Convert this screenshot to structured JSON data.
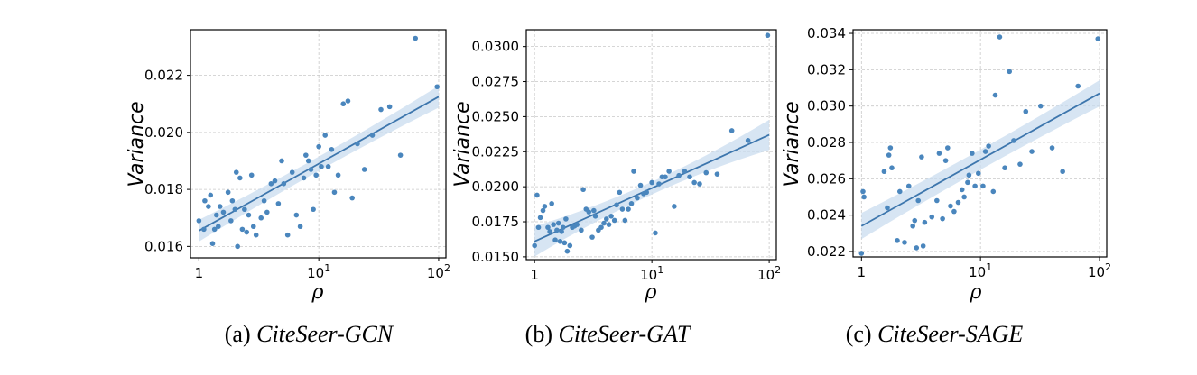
{
  "chart_data": [
    {
      "type": "scatter",
      "x_scale": "log",
      "xlabel": "ρ",
      "ylabel": "Variance",
      "caption_label": "(a)",
      "caption_name": "CiteSeer-GCN",
      "xlim": [
        0.85,
        115
      ],
      "ylim": [
        0.0156,
        0.0236
      ],
      "yticks": [
        0.016,
        0.018,
        0.02,
        0.022
      ],
      "ytick_labels": [
        "0.016",
        "0.018",
        "0.020",
        "0.022"
      ],
      "xtick_labels": [
        {
          "x": 1,
          "base": "1",
          "exp": ""
        },
        {
          "x": 10,
          "base": "10",
          "exp": "1"
        },
        {
          "x": 100,
          "base": "10",
          "exp": "2"
        }
      ],
      "fit": {
        "x0": 1,
        "y0": 0.01655,
        "x1": 100,
        "y1": 0.02125,
        "band_low": [
          0.0161,
          0.0204
        ],
        "band_mid": 0.00025
      },
      "points": [
        [
          1.0,
          0.0169
        ],
        [
          1.1,
          0.0166
        ],
        [
          1.12,
          0.0176
        ],
        [
          1.2,
          0.0174
        ],
        [
          1.25,
          0.0178
        ],
        [
          1.3,
          0.0161
        ],
        [
          1.35,
          0.0166
        ],
        [
          1.4,
          0.0171
        ],
        [
          1.45,
          0.0167
        ],
        [
          1.5,
          0.0174
        ],
        [
          1.6,
          0.0172
        ],
        [
          1.75,
          0.0179
        ],
        [
          1.85,
          0.0169
        ],
        [
          1.9,
          0.0176
        ],
        [
          2.0,
          0.0173
        ],
        [
          2.05,
          0.0186
        ],
        [
          2.1,
          0.016
        ],
        [
          2.2,
          0.0184
        ],
        [
          2.3,
          0.0166
        ],
        [
          2.4,
          0.0173
        ],
        [
          2.5,
          0.0165
        ],
        [
          2.6,
          0.0171
        ],
        [
          2.75,
          0.0185
        ],
        [
          2.85,
          0.0167
        ],
        [
          3.0,
          0.0164
        ],
        [
          3.3,
          0.017
        ],
        [
          3.5,
          0.0176
        ],
        [
          3.7,
          0.0172
        ],
        [
          4.0,
          0.0182
        ],
        [
          4.3,
          0.0183
        ],
        [
          4.6,
          0.0175
        ],
        [
          4.9,
          0.019
        ],
        [
          5.1,
          0.0182
        ],
        [
          5.5,
          0.0164
        ],
        [
          6.0,
          0.0186
        ],
        [
          6.5,
          0.0171
        ],
        [
          7.0,
          0.0167
        ],
        [
          7.5,
          0.0184
        ],
        [
          7.8,
          0.0192
        ],
        [
          8.2,
          0.019
        ],
        [
          8.6,
          0.0187
        ],
        [
          9.0,
          0.0173
        ],
        [
          9.5,
          0.0185
        ],
        [
          10.0,
          0.0195
        ],
        [
          10.5,
          0.0188
        ],
        [
          11.3,
          0.0199
        ],
        [
          12.0,
          0.0188
        ],
        [
          12.8,
          0.0194
        ],
        [
          13.5,
          0.0179
        ],
        [
          14.5,
          0.0185
        ],
        [
          16.0,
          0.021
        ],
        [
          17.5,
          0.0211
        ],
        [
          19.0,
          0.0177
        ],
        [
          21.0,
          0.0196
        ],
        [
          24.0,
          0.0187
        ],
        [
          28.0,
          0.0199
        ],
        [
          33.0,
          0.0208
        ],
        [
          39.0,
          0.0209
        ],
        [
          48.0,
          0.0192
        ],
        [
          64.0,
          0.0233
        ],
        [
          97.0,
          0.0216
        ]
      ]
    },
    {
      "type": "scatter",
      "x_scale": "log",
      "xlabel": "ρ",
      "ylabel": "Variance",
      "caption_label": "(b)",
      "caption_name": "CiteSeer-GAT",
      "xlim": [
        0.85,
        115
      ],
      "ylim": [
        0.0148,
        0.0312
      ],
      "yticks": [
        0.015,
        0.0175,
        0.02,
        0.0225,
        0.025,
        0.0275,
        0.03
      ],
      "ytick_labels": [
        "0.0150",
        "0.0175",
        "0.0200",
        "0.0225",
        "0.0250",
        "0.0275",
        "0.0300"
      ],
      "xtick_labels": [
        {
          "x": 1,
          "base": "1",
          "exp": ""
        },
        {
          "x": 10,
          "base": "10",
          "exp": "1"
        },
        {
          "x": 100,
          "base": "10",
          "exp": "2"
        }
      ],
      "fit": {
        "x0": 1,
        "y0": 0.0161,
        "x1": 100,
        "y1": 0.0237,
        "band_low": [
          0.0154,
          0.0213
        ],
        "band_mid": 0.00045
      },
      "points": [
        [
          1.0,
          0.0158
        ],
        [
          1.05,
          0.0194
        ],
        [
          1.08,
          0.0171
        ],
        [
          1.12,
          0.0178
        ],
        [
          1.18,
          0.0183
        ],
        [
          1.22,
          0.0186
        ],
        [
          1.3,
          0.0171
        ],
        [
          1.35,
          0.0168
        ],
        [
          1.4,
          0.0188
        ],
        [
          1.45,
          0.0173
        ],
        [
          1.5,
          0.0162
        ],
        [
          1.55,
          0.0169
        ],
        [
          1.6,
          0.0174
        ],
        [
          1.65,
          0.0161
        ],
        [
          1.7,
          0.0168
        ],
        [
          1.75,
          0.0171
        ],
        [
          1.8,
          0.016
        ],
        [
          1.85,
          0.0177
        ],
        [
          1.9,
          0.0154
        ],
        [
          2.0,
          0.0158
        ],
        [
          2.1,
          0.0171
        ],
        [
          2.2,
          0.0172
        ],
        [
          2.3,
          0.0173
        ],
        [
          2.5,
          0.0169
        ],
        [
          2.6,
          0.0198
        ],
        [
          2.75,
          0.0184
        ],
        [
          2.9,
          0.0182
        ],
        [
          3.1,
          0.0164
        ],
        [
          3.2,
          0.0183
        ],
        [
          3.3,
          0.0179
        ],
        [
          3.5,
          0.0169
        ],
        [
          3.7,
          0.0171
        ],
        [
          3.9,
          0.0174
        ],
        [
          4.1,
          0.0177
        ],
        [
          4.3,
          0.0173
        ],
        [
          4.5,
          0.0179
        ],
        [
          4.8,
          0.0176
        ],
        [
          5.0,
          0.0187
        ],
        [
          5.3,
          0.0196
        ],
        [
          5.6,
          0.0184
        ],
        [
          5.9,
          0.0176
        ],
        [
          6.3,
          0.0184
        ],
        [
          6.7,
          0.0188
        ],
        [
          7.0,
          0.0211
        ],
        [
          7.5,
          0.0192
        ],
        [
          8.0,
          0.0201
        ],
        [
          8.5,
          0.0195
        ],
        [
          9.0,
          0.0196
        ],
        [
          10.0,
          0.0203
        ],
        [
          10.7,
          0.0167
        ],
        [
          11.5,
          0.0202
        ],
        [
          12.2,
          0.0207
        ],
        [
          13.0,
          0.0207
        ],
        [
          14.0,
          0.0211
        ],
        [
          15.5,
          0.0186
        ],
        [
          17.0,
          0.0208
        ],
        [
          19.0,
          0.0211
        ],
        [
          21.0,
          0.0207
        ],
        [
          23.0,
          0.0203
        ],
        [
          25.5,
          0.0202
        ],
        [
          29.0,
          0.021
        ],
        [
          36.0,
          0.0209
        ],
        [
          48.0,
          0.024
        ],
        [
          66.0,
          0.0233
        ],
        [
          97.0,
          0.0308
        ]
      ]
    },
    {
      "type": "scatter",
      "x_scale": "log",
      "xlabel": "ρ",
      "ylabel": "Variance",
      "caption_label": "(c)",
      "caption_name": "CiteSeer-SAGE",
      "xlim": [
        0.85,
        115
      ],
      "ylim": [
        0.0217,
        0.0342
      ],
      "yticks": [
        0.022,
        0.024,
        0.026,
        0.028,
        0.03,
        0.032,
        0.034
      ],
      "ytick_labels": [
        "0.022",
        "0.024",
        "0.026",
        "0.028",
        "0.030",
        "0.032",
        "0.034"
      ],
      "xtick_labels": [
        {
          "x": 1,
          "base": "1",
          "exp": ""
        },
        {
          "x": 10,
          "base": "10",
          "exp": "1"
        },
        {
          "x": 100,
          "base": "10",
          "exp": "2"
        }
      ],
      "fit": {
        "x0": 1,
        "y0": 0.0234,
        "x1": 100,
        "y1": 0.0307,
        "band_low": [
          0.0225,
          0.0291
        ],
        "band_mid": 0.00055
      },
      "points": [
        [
          1.0,
          0.0219
        ],
        [
          1.03,
          0.0253
        ],
        [
          1.05,
          0.025
        ],
        [
          1.55,
          0.0264
        ],
        [
          1.65,
          0.0244
        ],
        [
          1.7,
          0.0273
        ],
        [
          1.75,
          0.0277
        ],
        [
          1.8,
          0.0266
        ],
        [
          2.0,
          0.0226
        ],
        [
          2.1,
          0.0253
        ],
        [
          2.3,
          0.0225
        ],
        [
          2.5,
          0.0256
        ],
        [
          2.7,
          0.0234
        ],
        [
          2.8,
          0.0237
        ],
        [
          2.9,
          0.0222
        ],
        [
          3.0,
          0.0248
        ],
        [
          3.2,
          0.0272
        ],
        [
          3.3,
          0.0223
        ],
        [
          3.4,
          0.0236
        ],
        [
          3.9,
          0.0239
        ],
        [
          4.3,
          0.0248
        ],
        [
          4.5,
          0.0274
        ],
        [
          4.8,
          0.0238
        ],
        [
          5.1,
          0.027
        ],
        [
          5.3,
          0.0277
        ],
        [
          5.6,
          0.0245
        ],
        [
          6.0,
          0.0242
        ],
        [
          6.5,
          0.0247
        ],
        [
          7.0,
          0.0254
        ],
        [
          7.3,
          0.025
        ],
        [
          7.8,
          0.0258
        ],
        [
          8.0,
          0.0262
        ],
        [
          8.5,
          0.0274
        ],
        [
          9.0,
          0.0256
        ],
        [
          9.6,
          0.0263
        ],
        [
          10.5,
          0.0256
        ],
        [
          11.0,
          0.0275
        ],
        [
          11.7,
          0.0278
        ],
        [
          12.8,
          0.0253
        ],
        [
          13.3,
          0.0306
        ],
        [
          14.5,
          0.0338
        ],
        [
          16.0,
          0.0266
        ],
        [
          17.5,
          0.0319
        ],
        [
          19.0,
          0.0281
        ],
        [
          21.5,
          0.0268
        ],
        [
          24.0,
          0.0297
        ],
        [
          27.0,
          0.0275
        ],
        [
          32.0,
          0.03
        ],
        [
          40.0,
          0.0277
        ],
        [
          49.0,
          0.0264
        ],
        [
          66.0,
          0.0311
        ],
        [
          97.0,
          0.0337
        ]
      ]
    }
  ]
}
